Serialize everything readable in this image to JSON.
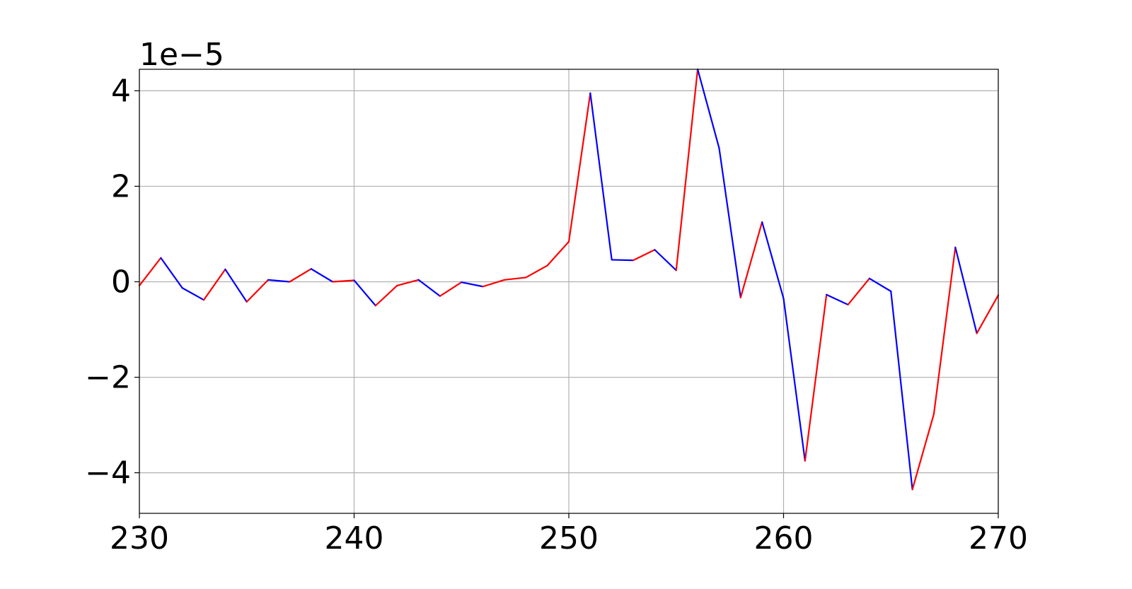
{
  "chart_data": {
    "type": "line",
    "title": "",
    "xlabel": "",
    "ylabel": "",
    "y_offset_label": "1e−5",
    "xlim": [
      230,
      270
    ],
    "ylim": [
      -4.85,
      4.45
    ],
    "grid": true,
    "x_ticks": [
      230,
      240,
      250,
      260,
      270
    ],
    "x_tick_labels": [
      "230",
      "240",
      "250",
      "260",
      "270"
    ],
    "y_ticks": [
      -4,
      -2,
      0,
      2,
      4
    ],
    "y_tick_labels": [
      "−4",
      "−2",
      "0",
      "2",
      "4"
    ],
    "positive_color": "#ff0000",
    "negative_color": "#0000ff",
    "x": [
      230,
      231,
      232,
      233,
      234,
      235,
      236,
      237,
      238,
      239,
      240,
      241,
      242,
      243,
      244,
      245,
      246,
      247,
      248,
      249,
      250,
      251,
      252,
      253,
      254,
      255,
      256,
      257,
      258,
      259,
      260,
      261,
      262,
      263,
      264,
      265,
      266,
      267,
      268,
      269,
      270
    ],
    "y": [
      -0.08,
      0.5,
      -0.13,
      -0.38,
      0.26,
      -0.42,
      0.04,
      0.0,
      0.27,
      0.0,
      0.03,
      -0.5,
      -0.08,
      0.04,
      -0.3,
      -0.01,
      -0.1,
      0.04,
      0.09,
      0.34,
      0.84,
      3.95,
      0.46,
      0.45,
      0.67,
      0.24,
      4.45,
      2.8,
      -0.33,
      1.25,
      -0.35,
      -3.75,
      -0.27,
      -0.48,
      0.07,
      -0.2,
      -4.35,
      -2.77,
      0.72,
      -1.08,
      -0.28
    ]
  }
}
